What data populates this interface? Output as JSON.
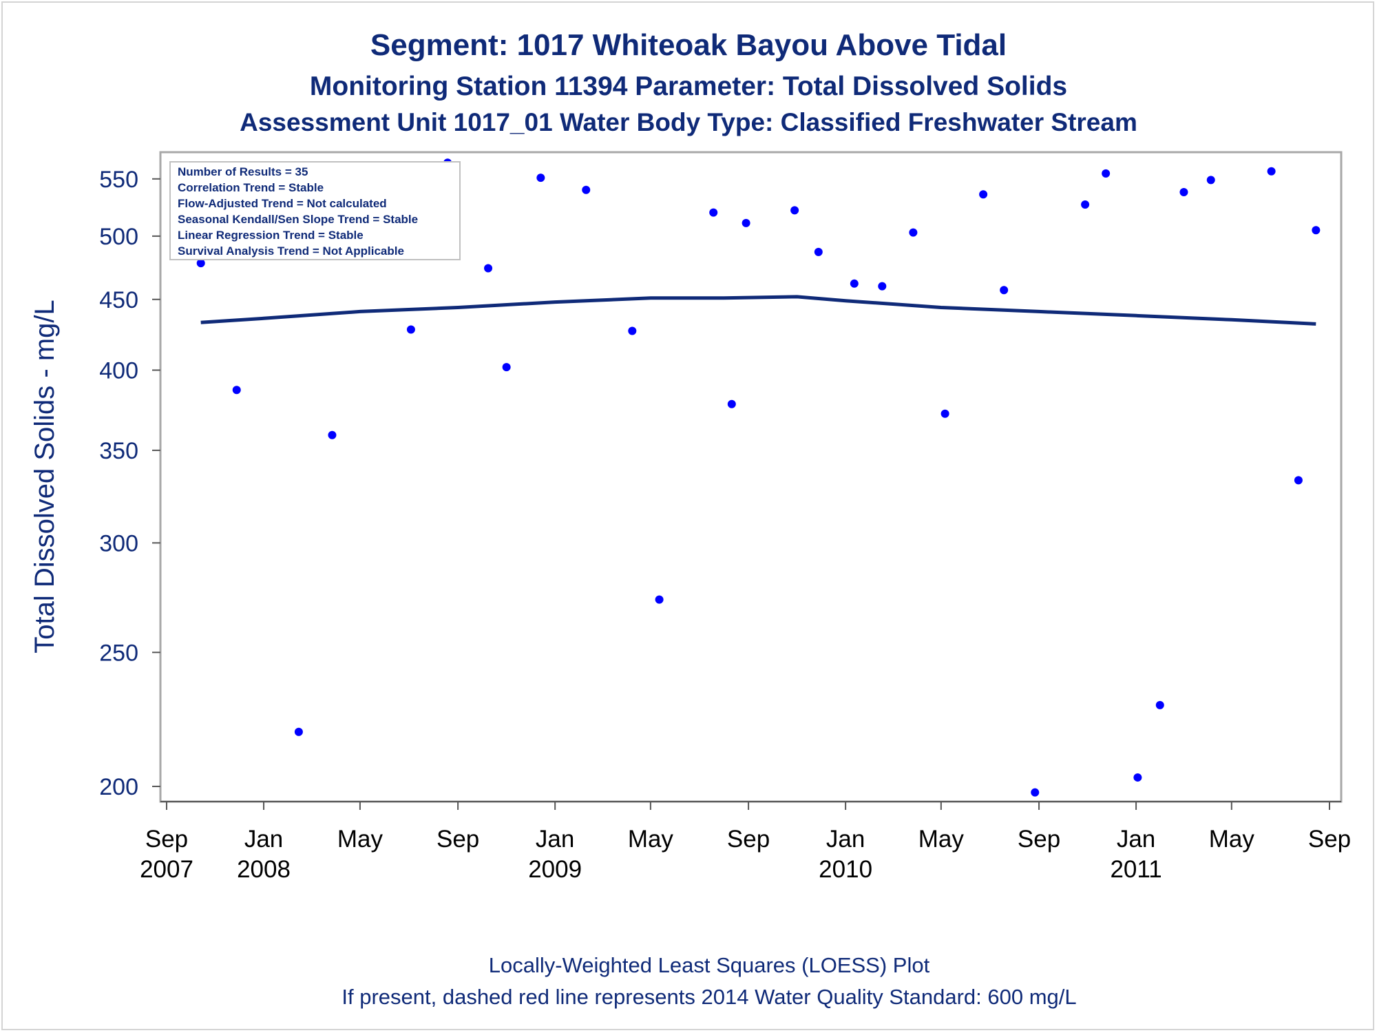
{
  "chart_data": {
    "type": "scatter",
    "title": "Segment: 1017  Whiteoak Bayou Above Tidal",
    "subtitle": "Monitoring Station 11394 Parameter: Total Dissolved Solids",
    "subtitle2": "Assessment Unit 1017_01   Water Body Type: Classified Freshwater Stream",
    "ylabel": "Total Dissolved Solids - mg/L",
    "y_scale": "log",
    "ylim": [
      195,
      575
    ],
    "xlim": [
      "2007-09-01",
      "2011-09-01"
    ],
    "y_ticks": [
      200,
      250,
      300,
      350,
      400,
      450,
      500,
      550
    ],
    "x_ticks": [
      {
        "date": "2007-09-01",
        "month": "Sep",
        "year": "2007"
      },
      {
        "date": "2008-01-01",
        "month": "Jan",
        "year": "2008"
      },
      {
        "date": "2008-05-01",
        "month": "May",
        "year": ""
      },
      {
        "date": "2008-09-01",
        "month": "Sep",
        "year": ""
      },
      {
        "date": "2009-01-01",
        "month": "Jan",
        "year": "2009"
      },
      {
        "date": "2009-05-01",
        "month": "May",
        "year": ""
      },
      {
        "date": "2009-09-01",
        "month": "Sep",
        "year": ""
      },
      {
        "date": "2010-01-01",
        "month": "Jan",
        "year": "2010"
      },
      {
        "date": "2010-05-01",
        "month": "May",
        "year": ""
      },
      {
        "date": "2010-09-01",
        "month": "Sep",
        "year": ""
      },
      {
        "date": "2011-01-01",
        "month": "Jan",
        "year": "2011"
      },
      {
        "date": "2011-05-01",
        "month": "May",
        "year": ""
      },
      {
        "date": "2011-09-01",
        "month": "Sep",
        "year": ""
      }
    ],
    "points": [
      {
        "x": "2007-10-14",
        "y": 478
      },
      {
        "x": "2007-11-28",
        "y": 387
      },
      {
        "x": "2008-01-01",
        "y": 544
      },
      {
        "x": "2008-02-14",
        "y": 219
      },
      {
        "x": "2008-03-27",
        "y": 359
      },
      {
        "x": "2008-04-17",
        "y": 501
      },
      {
        "x": "2008-07-04",
        "y": 428
      },
      {
        "x": "2008-08-19",
        "y": 565
      },
      {
        "x": "2008-10-09",
        "y": 474
      },
      {
        "x": "2008-11-01",
        "y": 402
      },
      {
        "x": "2008-12-14",
        "y": 551
      },
      {
        "x": "2009-02-09",
        "y": 540
      },
      {
        "x": "2009-04-08",
        "y": 427
      },
      {
        "x": "2009-05-12",
        "y": 273
      },
      {
        "x": "2009-07-19",
        "y": 520
      },
      {
        "x": "2009-08-11",
        "y": 378
      },
      {
        "x": "2009-08-29",
        "y": 511
      },
      {
        "x": "2009-10-29",
        "y": 522
      },
      {
        "x": "2009-11-28",
        "y": 487
      },
      {
        "x": "2010-01-12",
        "y": 462
      },
      {
        "x": "2010-02-16",
        "y": 460
      },
      {
        "x": "2010-03-27",
        "y": 503
      },
      {
        "x": "2010-05-06",
        "y": 372
      },
      {
        "x": "2010-06-23",
        "y": 536
      },
      {
        "x": "2010-07-19",
        "y": 457
      },
      {
        "x": "2010-08-27",
        "y": 198
      },
      {
        "x": "2010-10-29",
        "y": 527
      },
      {
        "x": "2010-11-24",
        "y": 555
      },
      {
        "x": "2011-01-03",
        "y": 203
      },
      {
        "x": "2011-01-31",
        "y": 229
      },
      {
        "x": "2011-03-02",
        "y": 538
      },
      {
        "x": "2011-04-05",
        "y": 549
      },
      {
        "x": "2011-06-20",
        "y": 557
      },
      {
        "x": "2011-07-24",
        "y": 333
      },
      {
        "x": "2011-08-15",
        "y": 505
      }
    ],
    "loess": [
      {
        "x": "2007-10-14",
        "y": 433
      },
      {
        "x": "2008-01-01",
        "y": 436
      },
      {
        "x": "2008-05-01",
        "y": 441
      },
      {
        "x": "2008-09-01",
        "y": 444
      },
      {
        "x": "2009-01-01",
        "y": 448
      },
      {
        "x": "2009-05-01",
        "y": 451
      },
      {
        "x": "2009-08-01",
        "y": 451
      },
      {
        "x": "2009-11-01",
        "y": 452
      },
      {
        "x": "2010-01-01",
        "y": 449
      },
      {
        "x": "2010-05-01",
        "y": 444
      },
      {
        "x": "2010-09-01",
        "y": 441
      },
      {
        "x": "2011-01-01",
        "y": 438
      },
      {
        "x": "2011-05-01",
        "y": 435
      },
      {
        "x": "2011-08-15",
        "y": 432
      }
    ],
    "marker_color": "#0000ff",
    "line_color": "#0f2a78",
    "annotations": [
      "Number of Results = 35",
      "Correlation Trend = Stable",
      "Flow-Adjusted Trend = Not calculated",
      "Seasonal Kendall/Sen Slope Trend = Stable",
      "Linear Regression Trend = Stable",
      "Survival Analysis Trend = Not Applicable"
    ],
    "footnote1": "Locally-Weighted Least Squares (LOESS) Plot",
    "footnote2": "If present, dashed red line represents 2014 Water Quality Standard: 600   mg/L"
  }
}
